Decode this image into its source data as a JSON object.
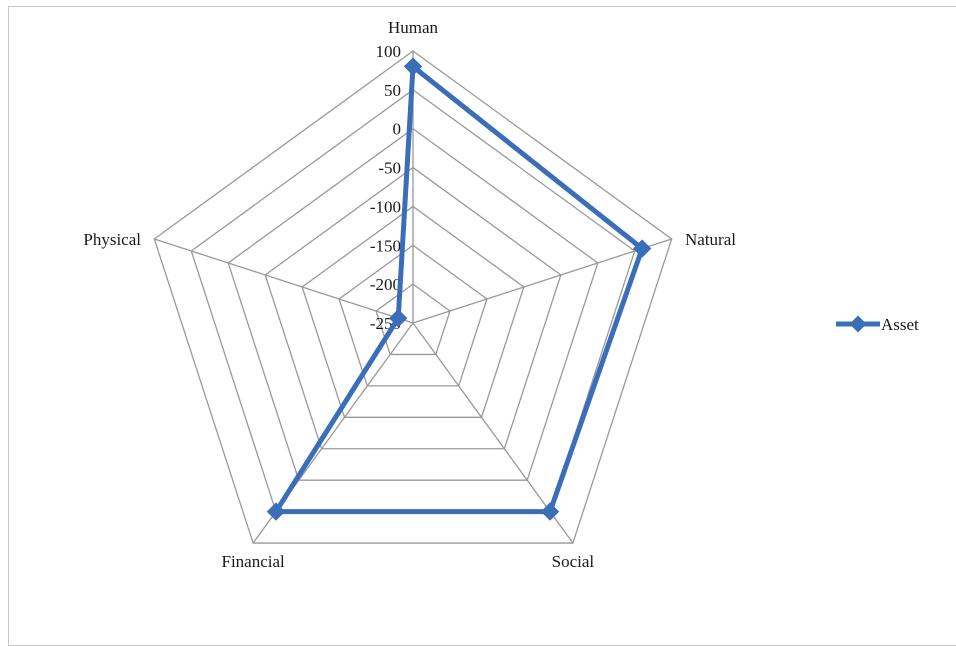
{
  "chart_data": {
    "type": "radar",
    "categories": [
      "Human",
      "Natural",
      "Social",
      "Financial",
      "Physical"
    ],
    "series": [
      {
        "name": "Asset",
        "values": [
          80,
          60,
          50,
          50,
          -230
        ],
        "color": "#3A6EB8"
      }
    ],
    "rlim": [
      -250,
      100
    ],
    "ticks": [
      100,
      50,
      0,
      -50,
      -100,
      -150,
      -200,
      -250
    ],
    "tick_labels": [
      "100",
      "50",
      "0",
      "-50",
      "-100",
      "-150",
      "-200",
      "-250"
    ],
    "grid": true,
    "grid_color": "#999999",
    "legend": {
      "position": "right",
      "entries": [
        "Asset"
      ]
    }
  }
}
